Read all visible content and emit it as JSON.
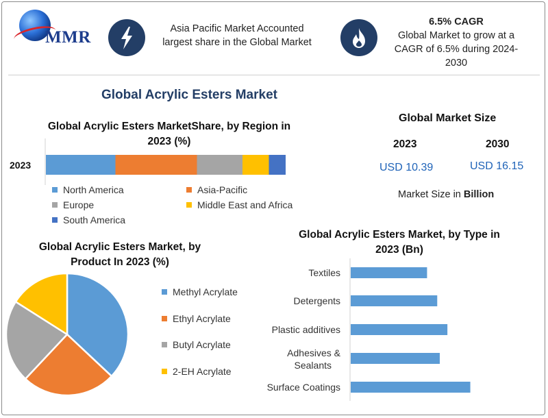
{
  "brand": {
    "logo_text": "MMR"
  },
  "top": {
    "box1_text": "Asia Pacific Market Accounted largest share in the Global Market",
    "box2_heading": "6.5% CAGR",
    "box2_text": "Global Market to grow at a CAGR of 6.5% during 2024-2030"
  },
  "main_title": "Global Acrylic Esters Market",
  "market_size": {
    "title": "Global Market Size",
    "year1": "2023",
    "year2": "2030",
    "value1": "USD 10.39",
    "value2": "USD 16.15",
    "note_prefix": "Market Size in ",
    "note_bold": "Billion"
  },
  "chart_data": [
    {
      "type": "bar",
      "orientation": "horizontal-stacked",
      "title": "Global Acrylic Esters MarketShare, by Region in 2023 (%)",
      "categories": [
        "2023"
      ],
      "series": [
        {
          "name": "North America",
          "values": [
            29
          ],
          "color": "#5b9bd5"
        },
        {
          "name": "Asia-Pacific",
          "values": [
            34
          ],
          "color": "#ed7d31"
        },
        {
          "name": "Europe",
          "values": [
            19
          ],
          "color": "#a5a5a5"
        },
        {
          "name": "Middle East and Africa",
          "values": [
            11
          ],
          "color": "#ffc000"
        },
        {
          "name": "South America",
          "values": [
            7
          ],
          "color": "#4472c4"
        }
      ],
      "legend": "bottom"
    },
    {
      "type": "pie",
      "title": "Global Acrylic Esters Market, by Product In 2023 (%)",
      "labels": [
        "Methyl Acrylate",
        "Ethyl Acrylate",
        "Butyl Acrylate",
        "2-EH Acrylate"
      ],
      "values": [
        37,
        25,
        22,
        16
      ],
      "colors": [
        "#5b9bd5",
        "#ed7d31",
        "#a5a5a5",
        "#ffc000"
      ],
      "legend": "right"
    },
    {
      "type": "bar",
      "orientation": "horizontal",
      "title": "Global Acrylic Esters Market, by Type in 2023 (Bn)",
      "categories": [
        "Textiles",
        "Detergents",
        "Plastic additives",
        "Adhesives & Sealants",
        "Surface Coatings"
      ],
      "values": [
        1.5,
        1.7,
        1.9,
        1.75,
        2.35
      ],
      "color": "#5b9bd5",
      "xlim": [
        0,
        3.5
      ]
    }
  ]
}
